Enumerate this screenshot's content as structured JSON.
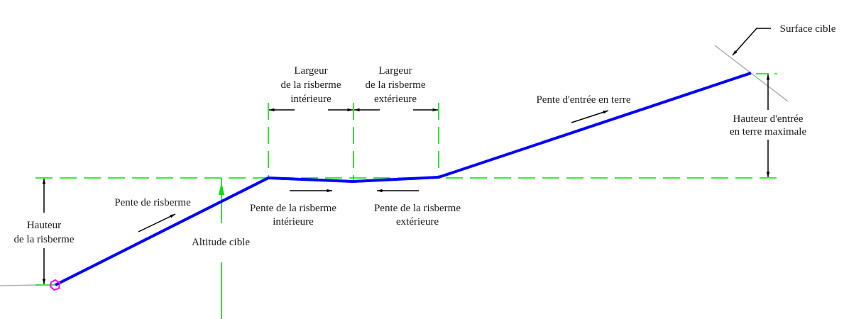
{
  "labels": {
    "surface_cible": "Surface cible",
    "largeur_int_1": "Largeur",
    "largeur_int_2": "de la risberme",
    "largeur_int_3": "intérieure",
    "largeur_ext_1": "Largeur",
    "largeur_ext_2": "de la risberme",
    "largeur_ext_3": "extérieure",
    "pente_entree": "Pente d'entrée en terre",
    "hauteur_entree_1": "Hauteur d'entrée",
    "hauteur_entree_2": "en terre maximale",
    "pente_risberme": "Pente de risberme",
    "hauteur_risberme_1": "Hauteur",
    "hauteur_risberme_2": "de la risberme",
    "altitude_cible": "Altitude cible",
    "pente_int_1": "Pente de la risberme",
    "pente_int_2": "intérieure",
    "pente_ext_1": "Pente de la risberme",
    "pente_ext_2": "extérieure"
  },
  "colors": {
    "profile": "#0000ff",
    "construction": "#00e000",
    "surface": "#b0b0b0",
    "marker": "#ff00ff",
    "annotation": "#000000"
  }
}
